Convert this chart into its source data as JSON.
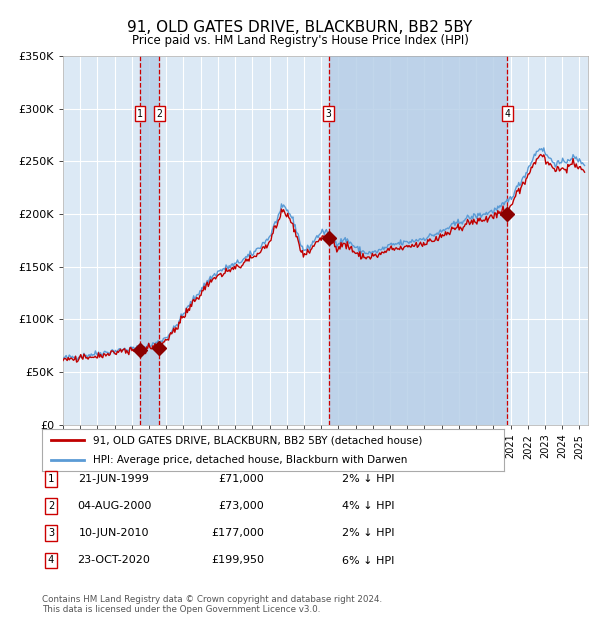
{
  "title": "91, OLD GATES DRIVE, BLACKBURN, BB2 5BY",
  "subtitle": "Price paid vs. HM Land Registry's House Price Index (HPI)",
  "footer1": "Contains HM Land Registry data © Crown copyright and database right 2024.",
  "footer2": "This data is licensed under the Open Government Licence v3.0.",
  "legend_house": "91, OLD GATES DRIVE, BLACKBURN, BB2 5BY (detached house)",
  "legend_hpi": "HPI: Average price, detached house, Blackburn with Darwen",
  "transactions": [
    {
      "num": 1,
      "date": "21-JUN-1999",
      "price": 71000,
      "pct": "2%",
      "dir": "↓"
    },
    {
      "num": 2,
      "date": "04-AUG-2000",
      "price": 73000,
      "pct": "4%",
      "dir": "↓"
    },
    {
      "num": 3,
      "date": "10-JUN-2010",
      "price": 177000,
      "pct": "2%",
      "dir": "↓"
    },
    {
      "num": 4,
      "date": "23-OCT-2020",
      "price": 199950,
      "pct": "6%",
      "dir": "↓"
    }
  ],
  "transaction_dates_decimal": [
    1999.47,
    2000.59,
    2010.44,
    2020.81
  ],
  "transaction_prices": [
    71000,
    73000,
    177000,
    199950
  ],
  "ylim": [
    0,
    350000
  ],
  "ytick_vals": [
    0,
    50000,
    100000,
    150000,
    200000,
    250000,
    300000,
    350000
  ],
  "ytick_labels": [
    "£0",
    "£50K",
    "£100K",
    "£150K",
    "£200K",
    "£250K",
    "£300K",
    "£350K"
  ],
  "xlim_start": 1995.0,
  "xlim_end": 2025.5,
  "bg_color": "#dce9f5",
  "grid_color": "#ffffff",
  "hpi_line_color": "#5b9bd5",
  "house_line_color": "#c00000",
  "marker_color": "#8b0000",
  "dashed_line_color": "#cc0000",
  "shade_color": "#b8cfe8",
  "hpi_key_points": [
    [
      1995.0,
      63000
    ],
    [
      1996.0,
      65000
    ],
    [
      1997.0,
      67500
    ],
    [
      1998.0,
      70000
    ],
    [
      1999.0,
      72000
    ],
    [
      1999.5,
      73000
    ],
    [
      2000.0,
      75000
    ],
    [
      2000.5,
      78000
    ],
    [
      2001.0,
      83000
    ],
    [
      2001.5,
      92000
    ],
    [
      2002.0,
      105000
    ],
    [
      2002.5,
      117000
    ],
    [
      2003.0,
      128000
    ],
    [
      2003.5,
      138000
    ],
    [
      2004.0,
      145000
    ],
    [
      2004.5,
      149000
    ],
    [
      2005.0,
      152000
    ],
    [
      2005.5,
      157000
    ],
    [
      2006.0,
      162000
    ],
    [
      2006.5,
      170000
    ],
    [
      2007.0,
      178000
    ],
    [
      2007.5,
      198000
    ],
    [
      2007.8,
      207000
    ],
    [
      2008.2,
      200000
    ],
    [
      2008.5,
      188000
    ],
    [
      2008.8,
      172000
    ],
    [
      2009.0,
      165000
    ],
    [
      2009.3,
      168000
    ],
    [
      2009.6,
      175000
    ],
    [
      2010.0,
      183000
    ],
    [
      2010.3,
      182000
    ],
    [
      2010.5,
      178000
    ],
    [
      2011.0,
      172000
    ],
    [
      2011.3,
      176000
    ],
    [
      2011.6,
      174000
    ],
    [
      2012.0,
      168000
    ],
    [
      2012.3,
      165000
    ],
    [
      2012.6,
      163000
    ],
    [
      2013.0,
      163000
    ],
    [
      2013.5,
      166000
    ],
    [
      2014.0,
      170000
    ],
    [
      2014.5,
      172000
    ],
    [
      2015.0,
      173000
    ],
    [
      2015.5,
      175000
    ],
    [
      2016.0,
      177000
    ],
    [
      2016.5,
      180000
    ],
    [
      2017.0,
      183000
    ],
    [
      2017.5,
      188000
    ],
    [
      2018.0,
      192000
    ],
    [
      2018.5,
      196000
    ],
    [
      2019.0,
      198000
    ],
    [
      2019.5,
      200000
    ],
    [
      2020.0,
      203000
    ],
    [
      2020.5,
      207000
    ],
    [
      2021.0,
      215000
    ],
    [
      2021.5,
      228000
    ],
    [
      2022.0,
      242000
    ],
    [
      2022.3,
      253000
    ],
    [
      2022.6,
      261000
    ],
    [
      2022.8,
      263000
    ],
    [
      2023.0,
      258000
    ],
    [
      2023.3,
      252000
    ],
    [
      2023.6,
      248000
    ],
    [
      2024.0,
      248000
    ],
    [
      2024.3,
      251000
    ],
    [
      2024.6,
      254000
    ],
    [
      2025.0,
      250000
    ],
    [
      2025.3,
      248000
    ]
  ]
}
